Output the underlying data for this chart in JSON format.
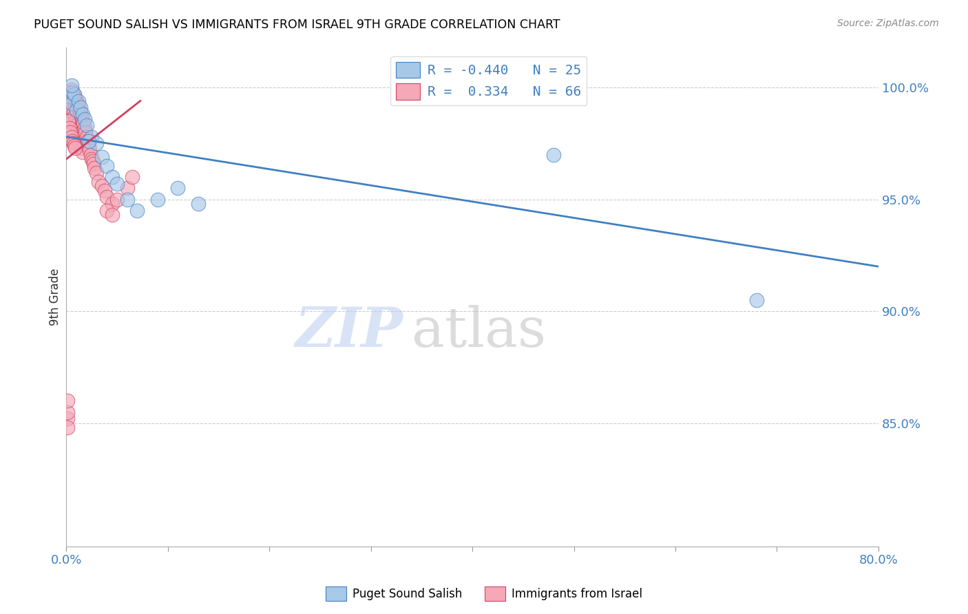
{
  "title": "PUGET SOUND SALISH VS IMMIGRANTS FROM ISRAEL 9TH GRADE CORRELATION CHART",
  "source": "Source: ZipAtlas.com",
  "ylabel": "9th Grade",
  "ylabel_right_ticks": [
    "100.0%",
    "95.0%",
    "90.0%",
    "85.0%"
  ],
  "ylabel_right_vals": [
    1.0,
    0.95,
    0.9,
    0.85
  ],
  "xlim": [
    0.0,
    0.8
  ],
  "ylim": [
    0.795,
    1.018
  ],
  "legend_blue_label_r": "R = -0.440",
  "legend_blue_label_n": "N = 25",
  "legend_pink_label_r": "R =  0.334",
  "legend_pink_label_n": "N = 66",
  "blue_color": "#a8c8e8",
  "pink_color": "#f4a8b8",
  "blue_line_color": "#4080c0",
  "pink_line_color": "#d04060",
  "blue_scatter_x": [
    0.003,
    0.005,
    0.006,
    0.008,
    0.01,
    0.012,
    0.014,
    0.016,
    0.018,
    0.02,
    0.025,
    0.03,
    0.035,
    0.04,
    0.045,
    0.05,
    0.06,
    0.07,
    0.09,
    0.11,
    0.13,
    0.48,
    0.68,
    0.005,
    0.022
  ],
  "blue_scatter_y": [
    0.996,
    0.993,
    0.998,
    0.997,
    0.99,
    0.994,
    0.991,
    0.988,
    0.986,
    0.983,
    0.978,
    0.975,
    0.969,
    0.965,
    0.96,
    0.957,
    0.95,
    0.945,
    0.95,
    0.955,
    0.948,
    0.97,
    0.905,
    1.001,
    0.976
  ],
  "pink_scatter_x": [
    0.001,
    0.002,
    0.002,
    0.003,
    0.003,
    0.004,
    0.004,
    0.005,
    0.005,
    0.006,
    0.006,
    0.007,
    0.007,
    0.008,
    0.008,
    0.009,
    0.009,
    0.01,
    0.01,
    0.011,
    0.011,
    0.012,
    0.012,
    0.013,
    0.013,
    0.014,
    0.014,
    0.015,
    0.015,
    0.016,
    0.016,
    0.017,
    0.018,
    0.019,
    0.02,
    0.021,
    0.022,
    0.023,
    0.024,
    0.025,
    0.026,
    0.027,
    0.028,
    0.03,
    0.032,
    0.035,
    0.038,
    0.04,
    0.045,
    0.05,
    0.06,
    0.065,
    0.002,
    0.003,
    0.004,
    0.005,
    0.006,
    0.007,
    0.008,
    0.009,
    0.04,
    0.045,
    0.001,
    0.001,
    0.001,
    0.001
  ],
  "pink_scatter_y": [
    0.998,
    0.998,
    0.995,
    0.996,
    0.993,
    0.997,
    0.994,
    0.999,
    0.991,
    0.998,
    0.99,
    0.997,
    0.989,
    0.996,
    0.987,
    0.995,
    0.985,
    0.994,
    0.983,
    0.993,
    0.981,
    0.992,
    0.979,
    0.99,
    0.977,
    0.989,
    0.975,
    0.987,
    0.973,
    0.985,
    0.971,
    0.984,
    0.982,
    0.98,
    0.978,
    0.976,
    0.974,
    0.972,
    0.97,
    0.968,
    0.967,
    0.966,
    0.964,
    0.962,
    0.958,
    0.956,
    0.954,
    0.951,
    0.948,
    0.95,
    0.955,
    0.96,
    0.985,
    0.982,
    0.98,
    0.978,
    0.976,
    0.975,
    0.974,
    0.973,
    0.945,
    0.943,
    0.852,
    0.848,
    0.855,
    0.86
  ],
  "blue_line_x": [
    0.0,
    0.8
  ],
  "blue_line_y": [
    0.978,
    0.92
  ],
  "pink_line_x": [
    0.0,
    0.073
  ],
  "pink_line_y": [
    0.968,
    0.994
  ],
  "grid_dashed_color": "#cccccc",
  "watermark_zip_color": "#c8d8f0",
  "watermark_atlas_color": "#c8c8c8"
}
